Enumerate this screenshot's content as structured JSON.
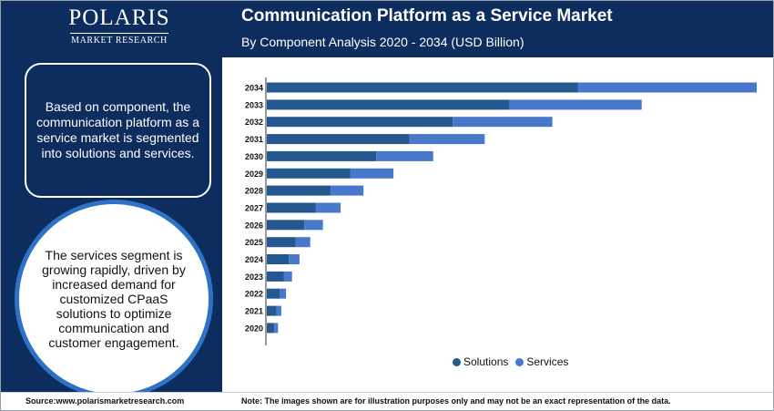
{
  "brand": {
    "name": "POLARIS",
    "tagline": "MARKET RESEARCH"
  },
  "header": {
    "title": "Communication Platform as a Service Market",
    "subtitle": "By Component Analysis 2020 - 2034 (USD Billion)"
  },
  "sidebar": {
    "box_text": "Based on component, the communication platform as a service market is segmented into solutions and services.",
    "circle_text": "The services segment is growing rapidly, driven by increased demand for customized CPaaS solutions to optimize communication and customer engagement."
  },
  "footer": {
    "source": "Source:www.polarismarketresearch.com",
    "note": "Note: The images shown are for illustration purposes only and may not be an exact representation of the data."
  },
  "colors": {
    "header_bg": "#0d2d5e",
    "solutions": "#24588f",
    "services": "#4778cc",
    "circle_ring": "#2e72c7"
  },
  "chart_data": {
    "type": "bar",
    "orientation": "horizontal",
    "stacked": true,
    "categories": [
      "2034",
      "2033",
      "2032",
      "2031",
      "2030",
      "2029",
      "2028",
      "2027",
      "2026",
      "2025",
      "2024",
      "2023",
      "2022",
      "2021",
      "2020"
    ],
    "series": [
      {
        "name": "Solutions",
        "color": "#24588f",
        "values": [
          66.6,
          51.9,
          39.8,
          30.5,
          23.4,
          17.9,
          13.7,
          10.5,
          8.0,
          6.2,
          4.7,
          3.6,
          2.8,
          2.1,
          1.6
        ]
      },
      {
        "name": "Services",
        "color": "#4778cc",
        "values": [
          38.2,
          28.3,
          21.3,
          16.1,
          12.2,
          9.2,
          7.0,
          5.3,
          4.0,
          3.1,
          2.3,
          1.8,
          1.3,
          1.0,
          0.8
        ]
      }
    ],
    "xlim": [
      0,
      110
    ],
    "grid": false,
    "legend_position": "bottom"
  }
}
